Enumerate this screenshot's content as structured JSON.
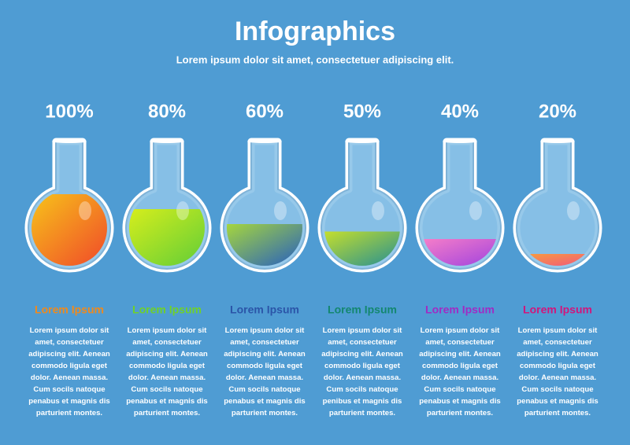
{
  "chart_data": {
    "type": "flask",
    "title": "Infographics",
    "subtitle": "Lorem ipsum dolor sit amet, consectetuer adipiscing elit.",
    "categories": [
      "Lorem Ipsum",
      "Lorem Ipsum",
      "Lorem Ipsum",
      "Lorem Ipsum",
      "Lorem Ipsum",
      "Lorem Ipsum"
    ],
    "values": [
      100,
      80,
      60,
      50,
      40,
      20
    ],
    "value_labels": [
      "100%",
      "80%",
      "60%",
      "50%",
      "40%",
      "20%"
    ],
    "colors": [
      "#f08a1c",
      "#6fd12a",
      "#2b55a8",
      "#13876f",
      "#a02cc4",
      "#d0167c"
    ],
    "gradients": [
      [
        "#f7c51a",
        "#f0442a"
      ],
      [
        "#d8ee1c",
        "#5ccc38"
      ],
      [
        "#a8d83a",
        "#1e58c8"
      ],
      [
        "#c8e02a",
        "#1a8a9a"
      ],
      [
        "#f77fc8",
        "#9a3ee0"
      ],
      [
        "#f8a03a",
        "#f04a8a"
      ]
    ],
    "ylim": [
      0,
      100
    ],
    "descriptions": [
      "Lorem ipsum dolor sit amet, consectetuer adipiscing elit. Aenean commodo ligula eget dolor. Aenean massa. Cum socils natoque penabus et magnis dis parturient montes.",
      "Lorem ipsum dolor sit amet, consectetuer adipiscing elit. Aenean commodo ligula eget dolor. Aenean massa. Cum socils natoque penabus et magnis dis parturient montes.",
      "Lorem ipsum dolor sit amet, consectetuer adipiscing elit. Aenean commodo ligula eget dolor. Aenean massa. Cum socils natoque penabus et magnis dis parturient montes.",
      "Lorem ipsum dolor sit amet, consectetuer adipiscing elit. Aenean commodo ligula eget dolor. Aenean massa. Cum socils natoque penibus et magnis dis parturient montes.",
      "Lorem ipsum dolor sit amet, consectetuer adipiscing elit. Aenean commodo ligula eget dolor. Aenean massa. Cum socils natoque penabus et magnis dis parturient montes.",
      "Lorem ipsum dolor sit amet, consectetuer adipiscing elit. Aenean commodo ligula eget dolor. Aenean massa. Cum socils natoque penabus et magnis dis parturient montes."
    ]
  }
}
